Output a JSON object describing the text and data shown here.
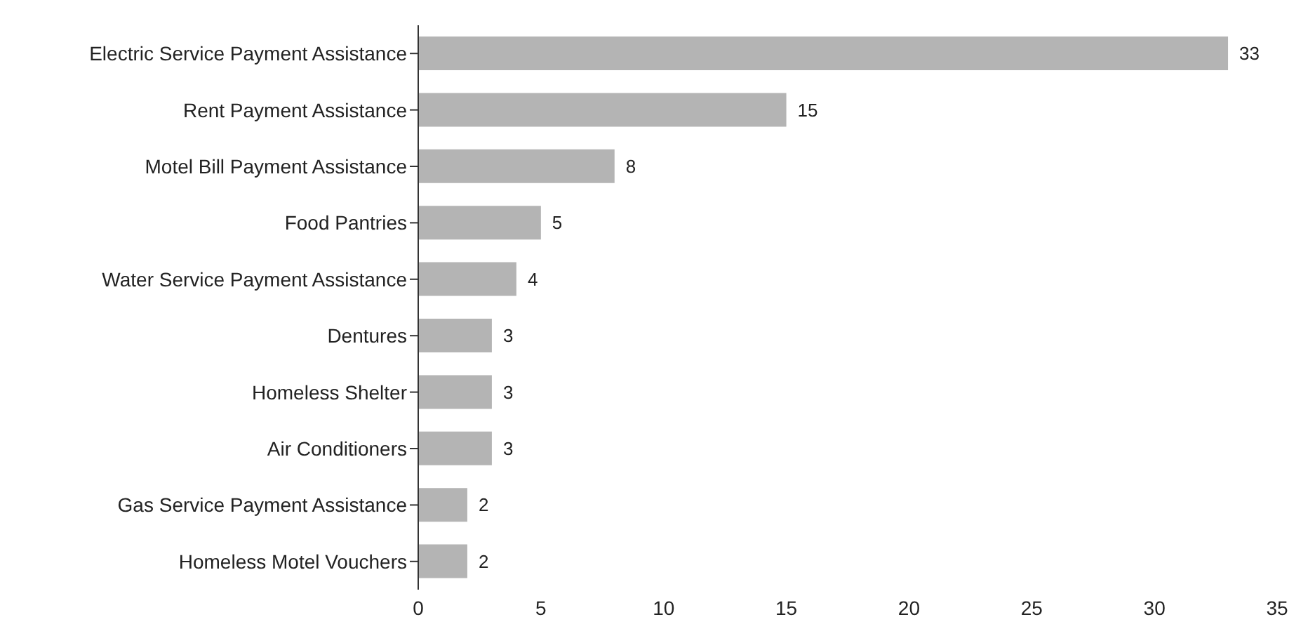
{
  "chart_data": {
    "type": "bar",
    "orientation": "horizontal",
    "categories": [
      "Electric Service Payment Assistance",
      "Rent Payment Assistance",
      "Motel Bill Payment Assistance",
      "Food Pantries",
      "Water Service Payment Assistance",
      "Dentures",
      "Homeless Shelter",
      "Air Conditioners",
      "Gas Service Payment Assistance",
      "Homeless Motel Vouchers"
    ],
    "values": [
      33,
      15,
      8,
      5,
      4,
      3,
      3,
      3,
      2,
      2
    ],
    "color": "#b4b4b4",
    "xlim": [
      0,
      35
    ],
    "xticks": [
      0,
      5,
      10,
      15,
      20,
      25,
      30,
      35
    ],
    "data_labels": true
  }
}
